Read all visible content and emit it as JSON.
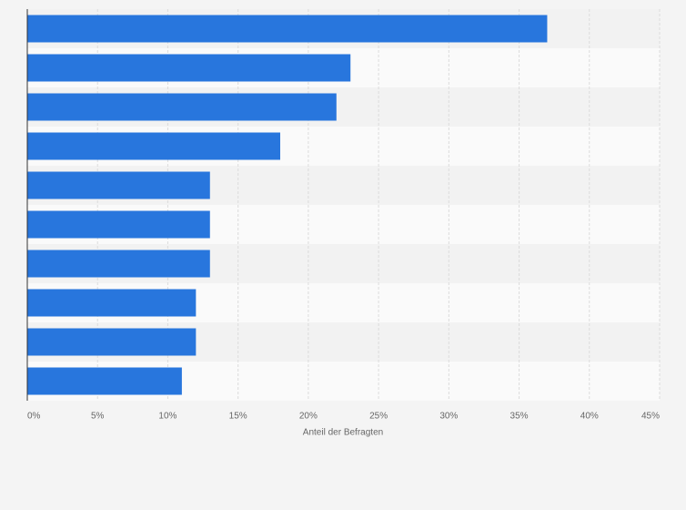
{
  "chart_data": {
    "type": "bar",
    "orientation": "horizontal",
    "categories": [
      null,
      null,
      null,
      null,
      null,
      null,
      null,
      null,
      null,
      null
    ],
    "values": [
      37,
      23,
      22,
      18,
      13,
      13,
      13,
      12,
      12,
      11
    ],
    "color": "#2876dd",
    "xlabel": "Anteil der Befragten",
    "xlim": [
      0,
      45
    ],
    "xticks": [
      {
        "value": 0,
        "label": "0%"
      },
      {
        "value": 5,
        "label": "5%"
      },
      {
        "value": 10,
        "label": "10%"
      },
      {
        "value": 15,
        "label": "15%"
      },
      {
        "value": 20,
        "label": "20%"
      },
      {
        "value": 25,
        "label": "25%"
      },
      {
        "value": 30,
        "label": "30%"
      },
      {
        "value": 35,
        "label": "35%"
      },
      {
        "value": 40,
        "label": "40%"
      },
      {
        "value": 45,
        "label": "45%"
      }
    ],
    "grid": true
  }
}
